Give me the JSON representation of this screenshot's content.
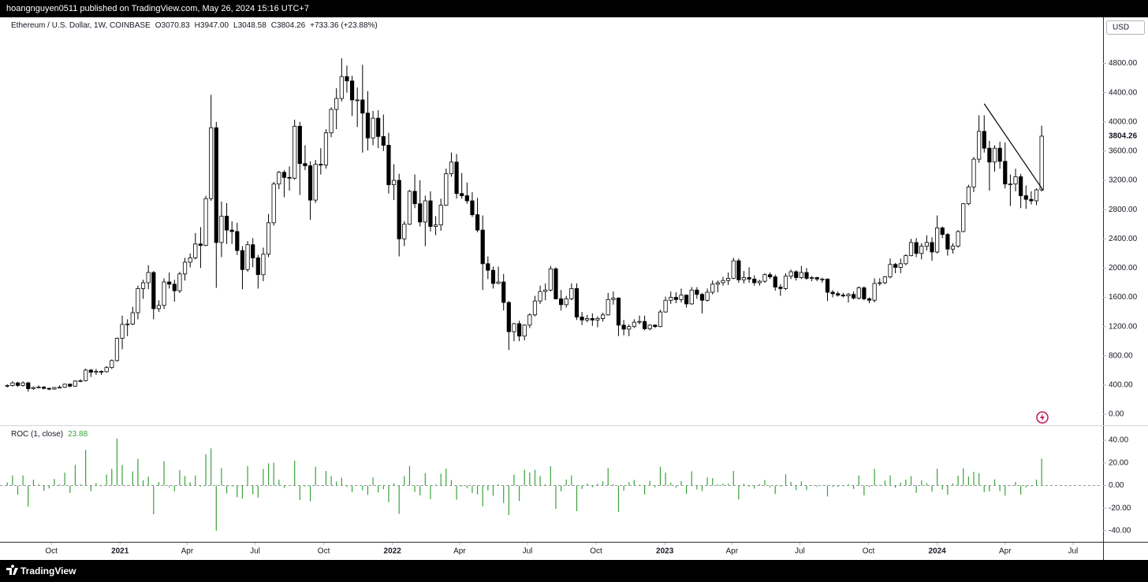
{
  "top_bar": "hoangnguyen0511 published on TradingView.com, May 26, 2024 15:16 UTC+7",
  "footer": "TradingView",
  "chart_data": {
    "type": "candlestick",
    "title": "Ethereum / U.S. Dollar, 1W, COINBASE",
    "ohlc_legend": [
      "O3070.83",
      "H3947.00",
      "L3048.58",
      "C3804.26"
    ],
    "change_label": "+733.36 (+23.88%)",
    "currency": "USD",
    "up_color": "#ffffff",
    "down_color": "#000000",
    "wick_color": "#000000",
    "open": [
      385,
      395,
      430,
      395,
      430,
      350,
      368,
      372,
      355,
      346,
      366,
      370,
      412,
      385,
      455,
      460,
      605,
      575,
      587,
      583,
      640,
      735,
      1040,
      1230,
      1236,
      1390,
      1720,
      1800,
      1940,
      1445,
      1490,
      1810,
      1780,
      1690,
      1920,
      2080,
      2140,
      2330,
      2310,
      2950,
      3920,
      2350,
      2710,
      2520,
      2500,
      2240,
      1980,
      2320,
      2140,
      1910,
      2190,
      2620,
      3150,
      3310,
      3240,
      3230,
      3940,
      3430,
      3400,
      2930,
      3420,
      3410,
      3850,
      4170,
      4320,
      4620,
      4560,
      4300,
      4300,
      4120,
      3780,
      4050,
      3800,
      3680,
      3140,
      3200,
      2400,
      2600,
      3050,
      2880,
      2630,
      2920,
      2570,
      2590,
      2860,
      3290,
      3450,
      3020,
      2990,
      2920,
      2730,
      2520,
      2060,
      1970,
      1790,
      1810,
      1530,
      1130,
      1240,
      1070,
      1220,
      1360,
      1550,
      1680,
      1700,
      1990,
      1580,
      1500,
      1580,
      1720,
      1330,
      1290,
      1310,
      1290,
      1310,
      1360,
      1570,
      1590,
      1220,
      1165,
      1200,
      1260,
      1270,
      1170,
      1220,
      1200,
      1400,
      1560,
      1600,
      1570,
      1630,
      1510,
      1700,
      1640,
      1560,
      1670,
      1780,
      1800,
      1830,
      1860,
      2100,
      1840,
      1870,
      1850,
      1800,
      1820,
      1910,
      1880,
      1740,
      1720,
      1890,
      1950,
      1870,
      1940,
      1860,
      1870,
      1850,
      1850,
      1670,
      1650,
      1630,
      1620,
      1640,
      1590,
      1730,
      1580,
      1560,
      1790,
      1800,
      1880,
      2050,
      2010,
      2060,
      2170,
      2350,
      2200,
      2300,
      2350,
      2220,
      2550,
      2460,
      2260,
      2300,
      2500,
      2880,
      3110,
      3490,
      3870,
      3640,
      3450,
      3640,
      3460,
      3150,
      3150,
      3250,
      2990,
      2940,
      2920,
      3070.83
    ],
    "high": [
      410,
      450,
      445,
      450,
      445,
      380,
      395,
      385,
      365,
      375,
      395,
      420,
      420,
      465,
      480,
      625,
      620,
      620,
      600,
      660,
      750,
      1050,
      1350,
      1300,
      1470,
      1760,
      1840,
      2040,
      1960,
      1560,
      1860,
      1940,
      1840,
      1950,
      2140,
      2200,
      2480,
      2560,
      2990,
      4370,
      4000,
      2910,
      2890,
      2640,
      2620,
      2300,
      2370,
      2410,
      2180,
      2280,
      2740,
      3180,
      3330,
      3340,
      3390,
      4030,
      4000,
      3680,
      3460,
      3480,
      3640,
      3900,
      4200,
      4460,
      4870,
      4770,
      4630,
      4470,
      4780,
      4420,
      4150,
      4160,
      4100,
      3850,
      3420,
      3290,
      2640,
      3070,
      3280,
      3200,
      2990,
      3050,
      2710,
      2950,
      3360,
      3580,
      3560,
      3300,
      3170,
      3040,
      2960,
      2720,
      2160,
      2020,
      2020,
      1920,
      1550,
      1250,
      1280,
      1230,
      1380,
      1620,
      1760,
      1790,
      2030,
      2010,
      1700,
      1620,
      1790,
      1790,
      1400,
      1360,
      1380,
      1340,
      1390,
      1660,
      1680,
      1600,
      1290,
      1230,
      1300,
      1350,
      1350,
      1230,
      1230,
      1430,
      1610,
      1680,
      1670,
      1720,
      1640,
      1740,
      1740,
      1660,
      1720,
      1830,
      1830,
      1880,
      1940,
      2140,
      2130,
      1960,
      2010,
      1900,
      1840,
      1930,
      1940,
      1910,
      1780,
      1930,
      1980,
      1970,
      2030,
      2000,
      1890,
      1880,
      1870,
      1860,
      1700,
      1680,
      1660,
      1660,
      1680,
      1750,
      1750,
      1600,
      1860,
      1860,
      1890,
      2130,
      2070,
      2130,
      2190,
      2400,
      2410,
      2340,
      2450,
      2420,
      2720,
      2570,
      2480,
      2340,
      2520,
      2890,
      3140,
      3520,
      4090,
      4090,
      3740,
      3680,
      3730,
      3720,
      3280,
      3360,
      3290,
      3130,
      3050,
      3090,
      3947
    ],
    "low": [
      370,
      380,
      375,
      380,
      310,
      335,
      355,
      340,
      330,
      335,
      355,
      360,
      370,
      375,
      440,
      450,
      510,
      540,
      540,
      570,
      620,
      720,
      890,
      1070,
      1220,
      1300,
      1580,
      1710,
      1300,
      1400,
      1440,
      1720,
      1540,
      1660,
      1830,
      2010,
      2120,
      2000,
      2300,
      2920,
      1730,
      2150,
      2330,
      2330,
      2180,
      1710,
      1950,
      2010,
      1720,
      1820,
      2150,
      2580,
      3080,
      2970,
      3060,
      3210,
      3000,
      3340,
      2660,
      2890,
      3280,
      3360,
      3790,
      3900,
      4280,
      4400,
      4080,
      3930,
      3580,
      3610,
      3680,
      3640,
      3600,
      3020,
      2930,
      2160,
      2300,
      2590,
      2820,
      2570,
      2300,
      2500,
      2450,
      2510,
      2850,
      3250,
      2950,
      2950,
      2880,
      2700,
      2490,
      1700,
      1850,
      1720,
      1780,
      1420,
      880,
      1000,
      1000,
      1010,
      1180,
      1340,
      1510,
      1560,
      1680,
      1570,
      1420,
      1460,
      1560,
      1290,
      1220,
      1260,
      1210,
      1190,
      1270,
      1350,
      1500,
      1070,
      1080,
      1070,
      1180,
      1230,
      1150,
      1150,
      1180,
      1190,
      1390,
      1510,
      1520,
      1530,
      1460,
      1500,
      1580,
      1380,
      1540,
      1640,
      1670,
      1760,
      1770,
      1850,
      1800,
      1790,
      1800,
      1760,
      1760,
      1800,
      1850,
      1690,
      1620,
      1700,
      1850,
      1830,
      1850,
      1840,
      1820,
      1820,
      1800,
      1550,
      1600,
      1610,
      1600,
      1530,
      1570,
      1570,
      1560,
      1520,
      1530,
      1760,
      1780,
      1860,
      1930,
      1930,
      2040,
      2160,
      2150,
      2120,
      2240,
      2100,
      2200,
      2410,
      2170,
      2200,
      2280,
      2490,
      2860,
      3040,
      3440,
      3580,
      3060,
      3320,
      3360,
      3090,
      2850,
      3050,
      2820,
      2810,
      2870,
      2860,
      3048.58
    ],
    "close": [
      395,
      430,
      395,
      430,
      350,
      368,
      372,
      355,
      346,
      366,
      370,
      412,
      385,
      455,
      460,
      605,
      575,
      587,
      583,
      640,
      735,
      1040,
      1230,
      1236,
      1390,
      1720,
      1800,
      1940,
      1445,
      1490,
      1810,
      1780,
      1690,
      1920,
      2080,
      2140,
      2330,
      2310,
      2950,
      3920,
      2350,
      2710,
      2520,
      2500,
      2240,
      1980,
      2320,
      2140,
      1910,
      2190,
      2620,
      3150,
      3310,
      3240,
      3230,
      3940,
      3430,
      3400,
      2930,
      3420,
      3410,
      3850,
      4170,
      4320,
      4620,
      4560,
      4300,
      4300,
      4120,
      3780,
      4050,
      3800,
      3680,
      3140,
      3200,
      2400,
      2600,
      3050,
      2880,
      2630,
      2920,
      2570,
      2590,
      2860,
      3290,
      3450,
      3020,
      2990,
      2920,
      2730,
      2520,
      2060,
      1970,
      1790,
      1810,
      1530,
      1130,
      1240,
      1070,
      1220,
      1360,
      1550,
      1680,
      1700,
      1990,
      1580,
      1500,
      1580,
      1720,
      1330,
      1290,
      1310,
      1290,
      1310,
      1360,
      1570,
      1590,
      1220,
      1165,
      1200,
      1260,
      1270,
      1170,
      1220,
      1200,
      1400,
      1560,
      1600,
      1570,
      1630,
      1510,
      1700,
      1640,
      1560,
      1670,
      1780,
      1800,
      1830,
      1860,
      2100,
      1840,
      1870,
      1850,
      1800,
      1820,
      1910,
      1880,
      1740,
      1720,
      1890,
      1950,
      1870,
      1940,
      1860,
      1870,
      1850,
      1850,
      1670,
      1650,
      1630,
      1620,
      1640,
      1590,
      1730,
      1580,
      1560,
      1790,
      1800,
      1880,
      2050,
      2010,
      2060,
      2170,
      2350,
      2200,
      2300,
      2350,
      2220,
      2550,
      2460,
      2260,
      2300,
      2500,
      2880,
      3110,
      3490,
      3870,
      3640,
      3450,
      3640,
      3460,
      3150,
      3150,
      3250,
      2990,
      2940,
      2920,
      3070.83,
      3804.26
    ],
    "xlim": [
      -1.4,
      209.6
    ],
    "xticks": [
      {
        "value": 8.43,
        "label": "Oct"
      },
      {
        "value": 21.57,
        "label": "2021"
      },
      {
        "value": 34.43,
        "label": "Apr"
      },
      {
        "value": 47.43,
        "label": "Jul"
      },
      {
        "value": 60.57,
        "label": "Oct"
      },
      {
        "value": 73.71,
        "label": "2022"
      },
      {
        "value": 86.57,
        "label": "Apr"
      },
      {
        "value": 99.57,
        "label": "Jul"
      },
      {
        "value": 112.71,
        "label": "Oct"
      },
      {
        "value": 125.86,
        "label": "2023"
      },
      {
        "value": 138.71,
        "label": "Apr"
      },
      {
        "value": 151.71,
        "label": "Jul"
      },
      {
        "value": 164.86,
        "label": "Oct"
      },
      {
        "value": 178,
        "label": "2024"
      },
      {
        "value": 191,
        "label": "Apr"
      },
      {
        "value": 204,
        "label": "Jul"
      }
    ],
    "ylim": [
      -150,
      5430
    ],
    "yticks": [
      {
        "value": 0,
        "label": "0.00"
      },
      {
        "value": 400,
        "label": "400.00"
      },
      {
        "value": 800,
        "label": "800.00"
      },
      {
        "value": 1200,
        "label": "1200.00"
      },
      {
        "value": 1600,
        "label": "1600.00"
      },
      {
        "value": 2000,
        "label": "2000.00"
      },
      {
        "value": 2400,
        "label": "2400.00"
      },
      {
        "value": 2800,
        "label": "2800.00"
      },
      {
        "value": 3200,
        "label": "3200.00"
      },
      {
        "value": 3600,
        "label": "3600.00"
      },
      {
        "value": 4000,
        "label": "4000.00"
      },
      {
        "value": 4400,
        "label": "4400.00"
      },
      {
        "value": 4800,
        "label": "4800.00"
      }
    ],
    "trendline": {
      "x": [
        187,
        198.3
      ],
      "y": [
        4248,
        3062
      ],
      "color": "#000000"
    },
    "indicator": {
      "type": "bar",
      "title": "ROC (1, close)",
      "color": "#3ba13b",
      "zero_line": true,
      "values": [
        2.6,
        8.9,
        -8.1,
        8.9,
        -18.6,
        5.1,
        1.1,
        -4.6,
        -2.5,
        5.8,
        1.1,
        11.4,
        -6.6,
        18.2,
        1.1,
        31.5,
        -5.0,
        2.1,
        -0.7,
        9.8,
        14.8,
        41.5,
        18.3,
        0.5,
        12.5,
        23.7,
        4.7,
        7.8,
        -25.5,
        3.1,
        21.5,
        -1.7,
        -5.1,
        13.6,
        8.3,
        2.9,
        8.9,
        -0.9,
        27.7,
        32.9,
        -40.1,
        15.3,
        -7.0,
        -0.8,
        -10.4,
        -11.6,
        17.2,
        -7.8,
        -10.7,
        14.7,
        19.6,
        20.2,
        5.1,
        -2.1,
        -0.3,
        22.0,
        -12.9,
        -0.9,
        -13.8,
        16.7,
        -0.3,
        12.9,
        8.3,
        3.6,
        6.9,
        -1.3,
        -5.7,
        0,
        -4.2,
        -8.3,
        7.1,
        -6.2,
        -3.2,
        -14.7,
        1.9,
        -25.0,
        8.3,
        17.3,
        -5.6,
        -8.7,
        11.0,
        -12.0,
        0.8,
        10.4,
        15.0,
        4.9,
        -12.5,
        -1.0,
        -2.3,
        -6.5,
        -7.7,
        -18.3,
        -4.4,
        -9.1,
        1.1,
        -15.5,
        -26.1,
        9.7,
        -13.7,
        14.0,
        11.5,
        14.0,
        8.4,
        1.2,
        17.1,
        -20.6,
        -5.1,
        5.3,
        8.9,
        -22.7,
        -3.0,
        1.6,
        -1.5,
        1.6,
        3.8,
        15.4,
        1.3,
        -23.3,
        -4.5,
        3.0,
        5.0,
        0.8,
        -7.9,
        4.3,
        -1.6,
        16.7,
        11.4,
        2.6,
        -1.9,
        3.8,
        -7.4,
        12.6,
        -3.5,
        -4.9,
        7.1,
        6.6,
        1.1,
        1.7,
        1.6,
        12.9,
        -12.4,
        1.6,
        -1.1,
        -2.7,
        1.1,
        4.9,
        -1.6,
        -7.4,
        -1.1,
        9.9,
        3.2,
        -4.1,
        3.7,
        -4.1,
        0.5,
        -1.1,
        0,
        -9.7,
        -1.2,
        -1.2,
        -0.6,
        1.2,
        -3.0,
        8.8,
        -8.7,
        -1.3,
        14.7,
        0.6,
        4.4,
        9.0,
        -2.0,
        2.5,
        5.3,
        8.3,
        -6.4,
        4.5,
        2.2,
        -5.5,
        14.9,
        -3.5,
        -8.1,
        1.8,
        8.7,
        15.2,
        8.0,
        12.2,
        10.9,
        -5.9,
        -5.2,
        5.5,
        -4.9,
        -9.0,
        0,
        3.2,
        -8.0,
        -1.7,
        -0.7,
        5.2,
        23.88
      ],
      "ylim": [
        -49.8,
        52.6
      ],
      "yticks": [
        {
          "value": 40,
          "label": "40.00"
        },
        {
          "value": 20,
          "label": "20.00"
        },
        {
          "value": 0,
          "label": "0.00"
        },
        {
          "value": -20,
          "label": "-20.00"
        },
        {
          "value": -40,
          "label": "-40.00"
        }
      ]
    }
  }
}
